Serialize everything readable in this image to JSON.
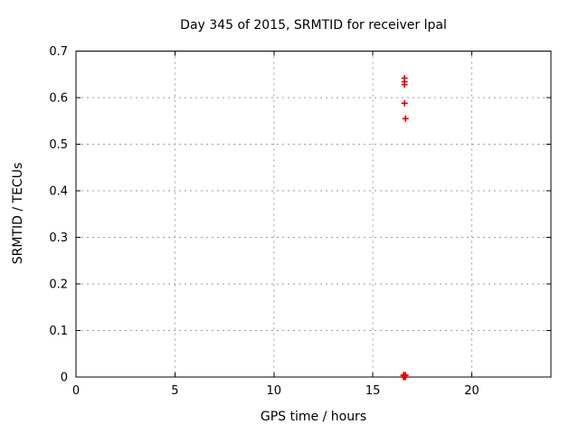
{
  "window": {
    "background": "#ffffff",
    "text_color": "#000000",
    "border_color": "#000000",
    "grid_color": "#9e9e9e"
  },
  "chart_data": {
    "type": "scatter",
    "title": "Day 345 of 2015, SRMTID for receiver lpal",
    "xlabel": "GPS time / hours",
    "ylabel": "SRMTID / TECUs",
    "xlim": [
      0,
      24
    ],
    "ylim": [
      0,
      0.7
    ],
    "xticks": [
      0,
      5,
      10,
      15,
      20
    ],
    "yticks": [
      0,
      0.1,
      0.2,
      0.3,
      0.4,
      0.5,
      0.6,
      0.7
    ],
    "grid": true,
    "legend_position": "none",
    "marker": "plus",
    "marker_color": "#e60000",
    "series": [
      {
        "name": "SRMTID",
        "points": [
          {
            "x": 16.6,
            "y": 0.642
          },
          {
            "x": 16.6,
            "y": 0.634
          },
          {
            "x": 16.6,
            "y": 0.628
          },
          {
            "x": 16.6,
            "y": 0.588
          },
          {
            "x": 16.65,
            "y": 0.555
          },
          {
            "x": 16.55,
            "y": 0.004
          },
          {
            "x": 16.6,
            "y": 0.004
          },
          {
            "x": 16.65,
            "y": 0.004
          },
          {
            "x": 16.55,
            "y": 0.0
          },
          {
            "x": 16.6,
            "y": 0.0
          },
          {
            "x": 16.65,
            "y": 0.0
          }
        ]
      }
    ]
  }
}
